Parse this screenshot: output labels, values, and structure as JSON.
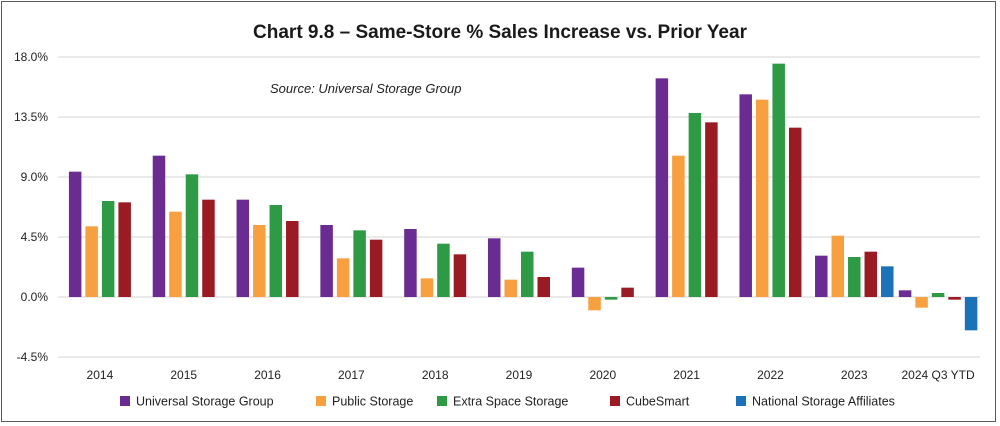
{
  "chart_data": {
    "type": "bar",
    "title": "Chart 9.8 – Same-Store % Sales Increase vs. Prior Year",
    "annotation": "Source: Universal Storage Group",
    "xlabel": "",
    "ylabel": "",
    "ylim": [
      -4.5,
      18.0
    ],
    "yticks": [
      "18.0%",
      "13.5%",
      "9.0%",
      "4.5%",
      "0.0%",
      "-4.5%"
    ],
    "ytick_values": [
      18.0,
      13.5,
      9.0,
      4.5,
      0.0,
      -4.5
    ],
    "grid": true,
    "legend_position": "bottom",
    "categories": [
      "2014",
      "2015",
      "2016",
      "2017",
      "2018",
      "2019",
      "2020",
      "2021",
      "2022",
      "2023",
      "2024 Q3 YTD"
    ],
    "series": [
      {
        "name": "Universal Storage Group",
        "color": "#6a2c91",
        "values": [
          9.4,
          10.6,
          7.3,
          5.4,
          5.1,
          4.4,
          2.2,
          16.4,
          15.2,
          3.1,
          0.5
        ]
      },
      {
        "name": "Public Storage",
        "color": "#f7a040",
        "values": [
          5.3,
          6.4,
          5.4,
          2.9,
          1.4,
          1.3,
          -1.0,
          10.6,
          14.8,
          4.6,
          -0.8
        ]
      },
      {
        "name": "Extra Space Storage",
        "color": "#2f9a45",
        "values": [
          7.2,
          9.2,
          6.9,
          5.0,
          4.0,
          3.4,
          -0.2,
          13.8,
          17.5,
          3.0,
          0.3
        ]
      },
      {
        "name": "CubeSmart",
        "color": "#9b1b24",
        "values": [
          7.1,
          7.3,
          5.7,
          4.3,
          3.2,
          1.5,
          0.7,
          13.1,
          12.7,
          3.4,
          -0.2
        ]
      },
      {
        "name": "National Storage Affiliates",
        "color": "#1c72b8",
        "values": [
          null,
          null,
          null,
          null,
          null,
          null,
          null,
          null,
          null,
          2.3,
          -2.5
        ]
      }
    ]
  }
}
